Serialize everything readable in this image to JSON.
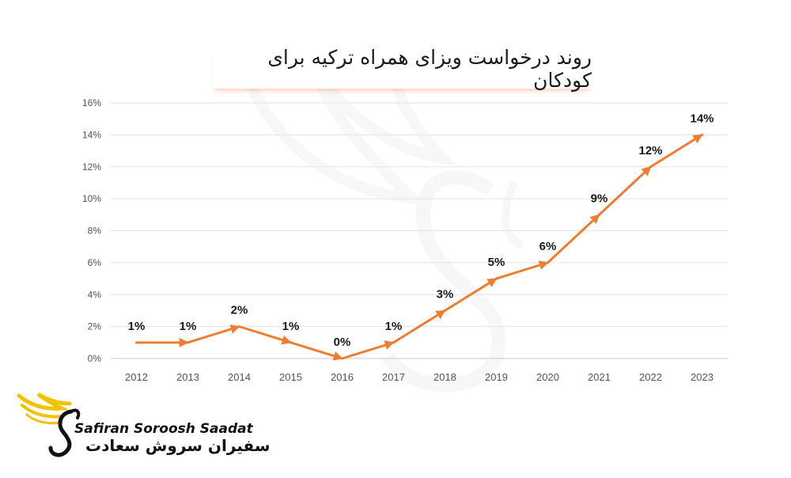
{
  "chart_data": {
    "type": "line",
    "title": "روند درخواست ویزای همراه ترکیه برای کودکان",
    "categories": [
      "2012",
      "2013",
      "2014",
      "2015",
      "2016",
      "2017",
      "2018",
      "2019",
      "2020",
      "2021",
      "2022",
      "2023"
    ],
    "values": [
      1,
      1,
      2,
      1,
      0,
      1,
      3,
      5,
      6,
      9,
      12,
      14
    ],
    "data_labels": [
      "1%",
      "1%",
      "2%",
      "1%",
      "0%",
      "1%",
      "3%",
      "5%",
      "6%",
      "9%",
      "12%",
      "14%"
    ],
    "yticks": [
      "0%",
      "2%",
      "4%",
      "6%",
      "8%",
      "10%",
      "12%",
      "14%",
      "16%"
    ],
    "ylim": [
      0,
      16
    ],
    "grid": true,
    "line_color": "#ED7D31"
  },
  "brand": {
    "name_en": "Safiran Soroosh Saadat",
    "name_fa": "سفیران سروش سعادت",
    "accent": "#F2C200"
  }
}
